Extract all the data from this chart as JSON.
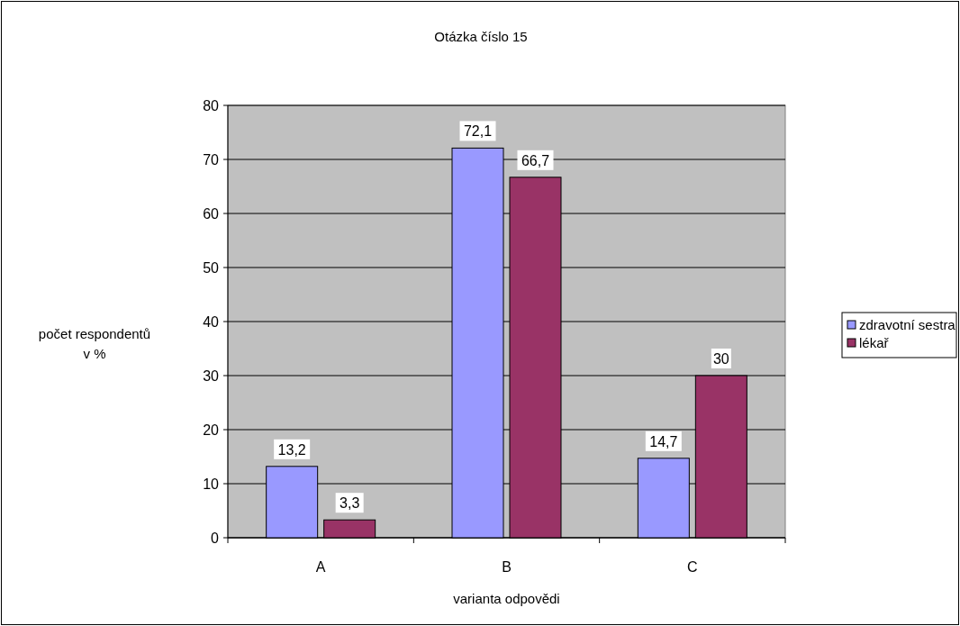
{
  "chart_data": {
    "type": "bar",
    "title": "Otázka číslo 15",
    "xlabel": "varianta odpovědi",
    "ylabel": "počet respondentů v %",
    "categories": [
      "A",
      "B",
      "C"
    ],
    "series": [
      {
        "name": "zdravotní sestra",
        "color": "#9999ff",
        "values": [
          13.2,
          72.1,
          14.7
        ]
      },
      {
        "name": "lékař",
        "color": "#993366",
        "values": [
          3.3,
          66.7,
          30
        ]
      }
    ],
    "value_labels": [
      [
        "13,2",
        "72,1",
        "14,7"
      ],
      [
        "3,3",
        "66,7",
        "30"
      ]
    ],
    "ylim": [
      0,
      80
    ],
    "yticks": [
      0,
      10,
      20,
      30,
      40,
      50,
      60,
      70,
      80
    ],
    "grid": "y",
    "legend": "right"
  }
}
